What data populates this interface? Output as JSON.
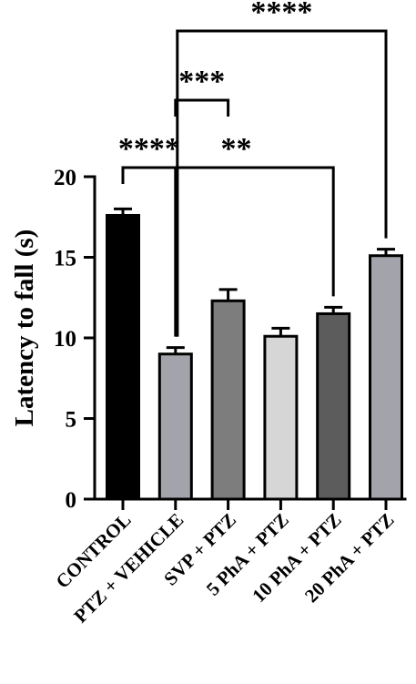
{
  "chart_data": {
    "type": "bar",
    "ylabel": "Latency to fall (s)",
    "ylim": [
      0,
      20
    ],
    "yticks": [
      "0",
      "5",
      "10",
      "15",
      "20"
    ],
    "categories": [
      "CONTROL",
      "PTZ + VEHICLE",
      "SVP + PTZ",
      "5 PhA + PTZ",
      "10 PhA + PTZ",
      "20 PhA + PTZ"
    ],
    "values": [
      17.6,
      9.0,
      12.3,
      10.1,
      11.5,
      15.1
    ],
    "errors": [
      0.4,
      0.4,
      0.7,
      0.5,
      0.4,
      0.4
    ],
    "colors": [
      "#000000",
      "#a3a3ab",
      "#7d7d7d",
      "#d6d6d6",
      "#5c5c5c",
      "#a3a3ab"
    ],
    "significance": [
      {
        "from": 0,
        "to": 1,
        "label": "****"
      },
      {
        "from": 1,
        "to": 2,
        "label": "***"
      },
      {
        "from": 1,
        "to": 4,
        "label": "**"
      },
      {
        "from": 1,
        "to": 5,
        "label": "****"
      }
    ]
  }
}
